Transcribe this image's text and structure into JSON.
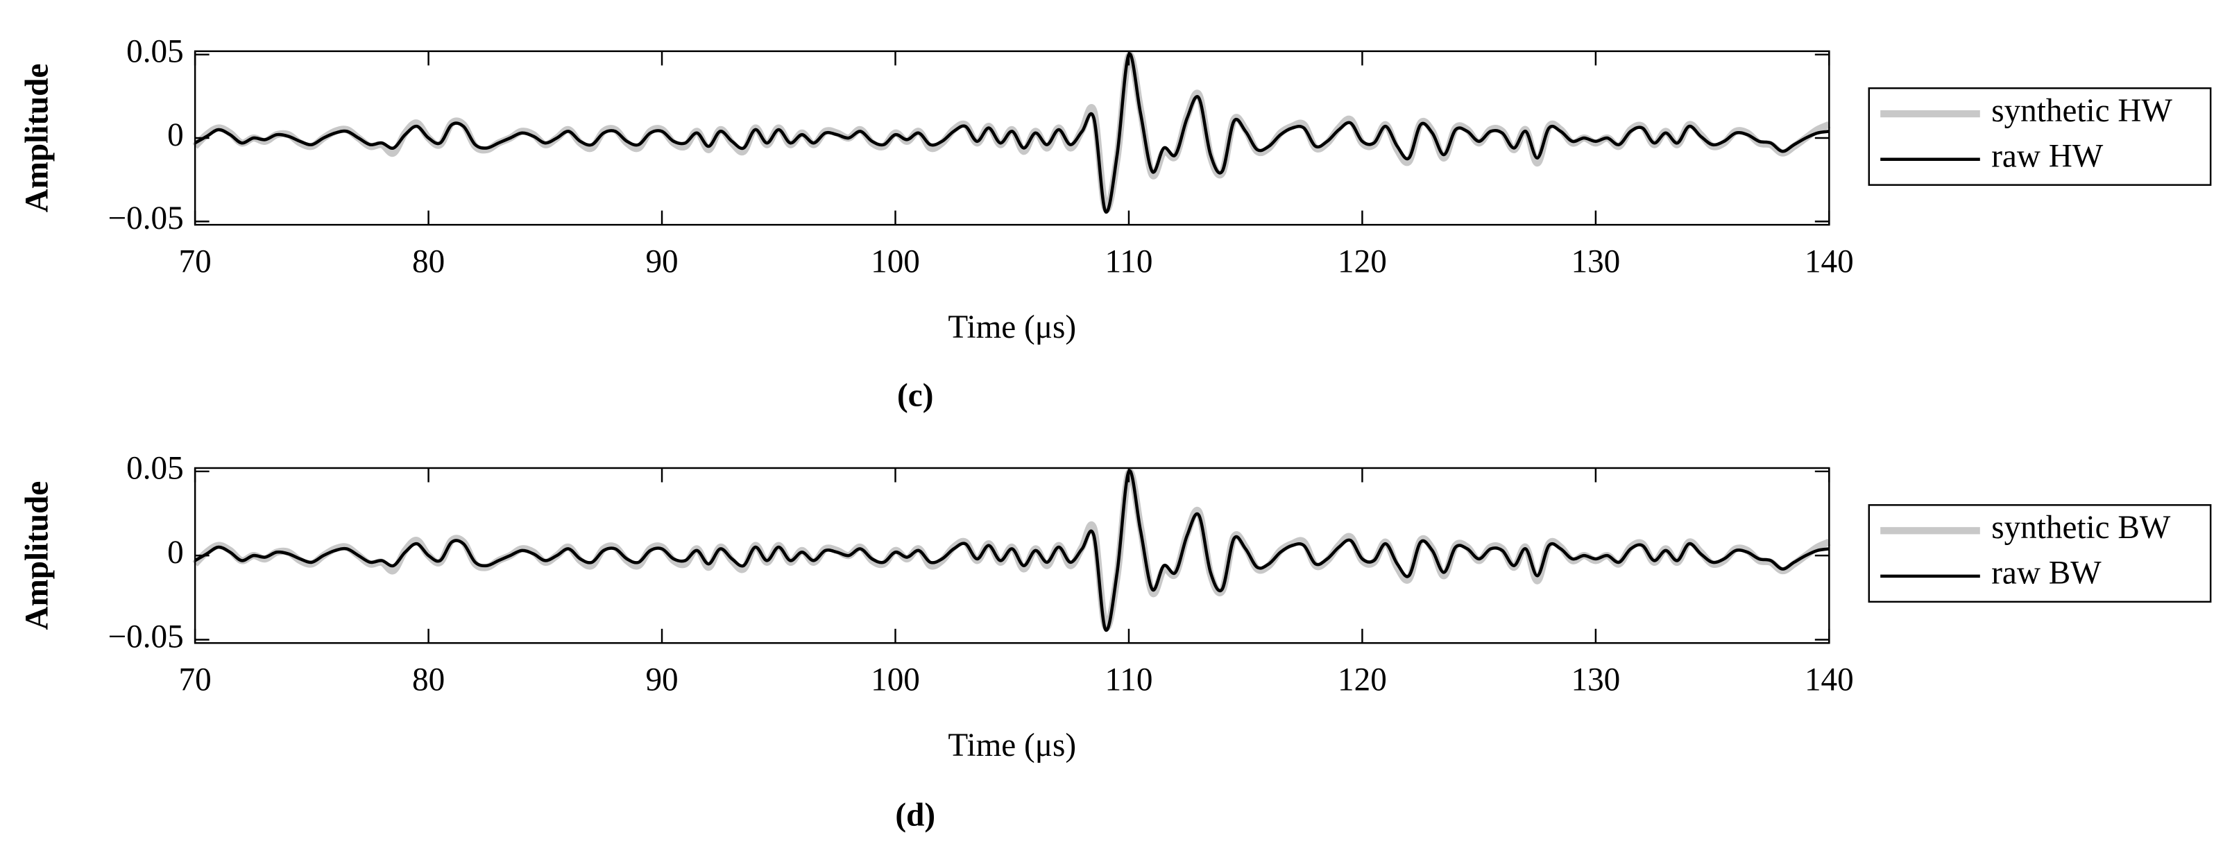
{
  "chart_data": [
    {
      "type": "line",
      "panel_label": "(c)",
      "xlabel": "Time (μs)",
      "ylabel": "Amplitude",
      "xlim": [
        70,
        140
      ],
      "xticks": [
        70,
        80,
        90,
        100,
        110,
        120,
        130,
        140
      ],
      "ylim": [
        -0.052,
        0.052
      ],
      "yticks": [
        {
          "value": -0.05,
          "label": "−0.05"
        },
        0,
        0.05
      ],
      "legend": "outside-right",
      "x": [
        70,
        70.5,
        71,
        71.5,
        72,
        72.5,
        73,
        73.5,
        74,
        74.5,
        75,
        75.5,
        76,
        76.5,
        77,
        77.5,
        78,
        78.5,
        79,
        79.5,
        80,
        80.5,
        81,
        81.5,
        82,
        82.5,
        83,
        83.5,
        84,
        84.5,
        85,
        85.5,
        86,
        86.5,
        87,
        87.5,
        88,
        88.5,
        89,
        89.5,
        90,
        90.5,
        91,
        91.5,
        92,
        92.5,
        93,
        93.5,
        94,
        94.5,
        95,
        95.5,
        96,
        96.5,
        97,
        97.5,
        98,
        98.5,
        99,
        99.5,
        100,
        100.5,
        101,
        101.5,
        102,
        102.5,
        103,
        103.5,
        104,
        104.5,
        105,
        105.5,
        106,
        106.5,
        107,
        107.5,
        108,
        108.5,
        109,
        109.5,
        110,
        110.5,
        111,
        111.5,
        112,
        112.5,
        113,
        113.5,
        114,
        114.5,
        115,
        115.5,
        116,
        116.5,
        117,
        117.5,
        118,
        118.5,
        119,
        119.5,
        120,
        120.5,
        121,
        121.5,
        122,
        122.5,
        123,
        123.5,
        124,
        124.5,
        125,
        125.5,
        126,
        126.5,
        127,
        127.5,
        128,
        128.5,
        129,
        129.5,
        130,
        130.5,
        131,
        131.5,
        132,
        132.5,
        133,
        133.5,
        134,
        134.5,
        135,
        135.5,
        136,
        136.5,
        137,
        137.5,
        138,
        138.5,
        139,
        139.5,
        140
      ],
      "series": [
        {
          "name": "synthetic HW",
          "color": "#c8c8c8",
          "width": 5,
          "values": [
            -0.005,
            0.002,
            0.006,
            0.003,
            -0.003,
            0,
            -0.002,
            0.002,
            0.002,
            -0.003,
            -0.005,
            0,
            0.004,
            0.005,
            0,
            -0.005,
            -0.004,
            -0.009,
            0.003,
            0.009,
            0,
            -0.004,
            0.009,
            0.008,
            -0.005,
            -0.007,
            -0.003,
            0,
            0.004,
            0.002,
            -0.004,
            0,
            0.005,
            -0.003,
            -0.006,
            0.004,
            0.005,
            -0.003,
            -0.006,
            0.004,
            0.005,
            -0.003,
            -0.005,
            0.004,
            -0.007,
            0.005,
            -0.003,
            -0.008,
            0.006,
            -0.004,
            0.006,
            -0.004,
            0.003,
            -0.004,
            0.004,
            0.003,
            0,
            0.005,
            -0.003,
            -0.005,
            0.003,
            -0.002,
            0.004,
            -0.006,
            -0.003,
            0.005,
            0.008,
            -0.003,
            0.007,
            -0.004,
            0.005,
            -0.008,
            0.004,
            -0.006,
            0.006,
            -0.006,
            0.005,
            0.016,
            -0.042,
            -0.012,
            0.049,
            0.017,
            -0.022,
            -0.008,
            -0.011,
            0.013,
            0.026,
            -0.011,
            -0.021,
            0.011,
            0.005,
            -0.008,
            -0.006,
            0.003,
            0.007,
            0.008,
            -0.006,
            -0.003,
            0.006,
            0.011,
            -0.003,
            -0.004,
            0.008,
            -0.007,
            -0.014,
            0.009,
            0.004,
            -0.012,
            0.006,
            0.005,
            -0.003,
            0.005,
            0.004,
            -0.007,
            0.005,
            -0.015,
            0.007,
            0.005,
            -0.003,
            0,
            -0.003,
            0,
            -0.005,
            0.005,
            0.007,
            -0.004,
            0.004,
            -0.004,
            0.008,
            0.002,
            -0.005,
            -0.003,
            0.004,
            0.003,
            -0.003,
            -0.004,
            -0.009,
            -0.005,
            0,
            0.005,
            0.008
          ]
        },
        {
          "name": "raw HW",
          "color": "#000000",
          "width": 2.2,
          "values": [
            -0.003,
            0.001,
            0.005,
            0.002,
            -0.003,
            0,
            -0.001,
            0.002,
            0.001,
            -0.002,
            -0.004,
            0,
            0.003,
            0.004,
            0,
            -0.004,
            -0.003,
            -0.006,
            0.002,
            0.007,
            0,
            -0.003,
            0.008,
            0.007,
            -0.004,
            -0.006,
            -0.003,
            0,
            0.003,
            0.001,
            -0.003,
            0,
            0.004,
            -0.002,
            -0.004,
            0.003,
            0.004,
            -0.002,
            -0.004,
            0.003,
            0.004,
            -0.002,
            -0.003,
            0.003,
            -0.005,
            0.004,
            -0.002,
            -0.006,
            0.005,
            -0.003,
            0.005,
            -0.003,
            0.002,
            -0.003,
            0.003,
            0.002,
            0,
            0.004,
            -0.002,
            -0.004,
            0.002,
            -0.001,
            0.003,
            -0.004,
            -0.002,
            0.004,
            0.007,
            -0.002,
            0.006,
            -0.003,
            0.004,
            -0.006,
            0.003,
            -0.004,
            0.005,
            -0.004,
            0.004,
            0.012,
            -0.044,
            -0.01,
            0.05,
            0.015,
            -0.02,
            -0.006,
            -0.01,
            0.012,
            0.024,
            -0.01,
            -0.02,
            0.01,
            0.004,
            -0.007,
            -0.005,
            0.002,
            0.006,
            0.006,
            -0.005,
            -0.002,
            0.005,
            0.009,
            -0.002,
            -0.003,
            0.007,
            -0.005,
            -0.012,
            0.008,
            0.003,
            -0.01,
            0.005,
            0.004,
            -0.002,
            0.004,
            0.003,
            -0.006,
            0.004,
            -0.012,
            0.006,
            0.004,
            -0.002,
            0,
            -0.002,
            0,
            -0.004,
            0.004,
            0.006,
            -0.003,
            0.003,
            -0.003,
            0.007,
            0.001,
            -0.004,
            -0.002,
            0.003,
            0.002,
            -0.002,
            -0.003,
            -0.008,
            -0.004,
            0,
            0.003,
            0.004
          ]
        }
      ]
    },
    {
      "type": "line",
      "panel_label": "(d)",
      "xlabel": "Time (μs)",
      "ylabel": "Amplitude",
      "xlim": [
        70,
        140
      ],
      "xticks": [
        70,
        80,
        90,
        100,
        110,
        120,
        130,
        140
      ],
      "ylim": [
        -0.052,
        0.052
      ],
      "yticks": [
        {
          "value": -0.05,
          "label": "−0.05"
        },
        0,
        0.05
      ],
      "legend": "outside-right",
      "x": [
        70,
        70.5,
        71,
        71.5,
        72,
        72.5,
        73,
        73.5,
        74,
        74.5,
        75,
        75.5,
        76,
        76.5,
        77,
        77.5,
        78,
        78.5,
        79,
        79.5,
        80,
        80.5,
        81,
        81.5,
        82,
        82.5,
        83,
        83.5,
        84,
        84.5,
        85,
        85.5,
        86,
        86.5,
        87,
        87.5,
        88,
        88.5,
        89,
        89.5,
        90,
        90.5,
        91,
        91.5,
        92,
        92.5,
        93,
        93.5,
        94,
        94.5,
        95,
        95.5,
        96,
        96.5,
        97,
        97.5,
        98,
        98.5,
        99,
        99.5,
        100,
        100.5,
        101,
        101.5,
        102,
        102.5,
        103,
        103.5,
        104,
        104.5,
        105,
        105.5,
        106,
        106.5,
        107,
        107.5,
        108,
        108.5,
        109,
        109.5,
        110,
        110.5,
        111,
        111.5,
        112,
        112.5,
        113,
        113.5,
        114,
        114.5,
        115,
        115.5,
        116,
        116.5,
        117,
        117.5,
        118,
        118.5,
        119,
        119.5,
        120,
        120.5,
        121,
        121.5,
        122,
        122.5,
        123,
        123.5,
        124,
        124.5,
        125,
        125.5,
        126,
        126.5,
        127,
        127.5,
        128,
        128.5,
        129,
        129.5,
        130,
        130.5,
        131,
        131.5,
        132,
        132.5,
        133,
        133.5,
        134,
        134.5,
        135,
        135.5,
        136,
        136.5,
        137,
        137.5,
        138,
        138.5,
        139,
        139.5,
        140
      ],
      "series": [
        {
          "name": "synthetic BW",
          "color": "#c8c8c8",
          "width": 5,
          "values": [
            -0.005,
            0.002,
            0.006,
            0.003,
            -0.003,
            0,
            -0.002,
            0.002,
            0.002,
            -0.003,
            -0.005,
            0,
            0.004,
            0.005,
            0,
            -0.005,
            -0.004,
            -0.009,
            0.003,
            0.009,
            0,
            -0.004,
            0.009,
            0.008,
            -0.005,
            -0.007,
            -0.003,
            0,
            0.004,
            0.002,
            -0.004,
            0,
            0.005,
            -0.003,
            -0.006,
            0.004,
            0.005,
            -0.003,
            -0.006,
            0.004,
            0.005,
            -0.003,
            -0.005,
            0.004,
            -0.007,
            0.005,
            -0.003,
            -0.008,
            0.006,
            -0.004,
            0.006,
            -0.004,
            0.003,
            -0.004,
            0.004,
            0.003,
            0,
            0.005,
            -0.003,
            -0.005,
            0.003,
            -0.002,
            0.004,
            -0.006,
            -0.003,
            0.005,
            0.008,
            -0.003,
            0.007,
            -0.004,
            0.005,
            -0.008,
            0.004,
            -0.006,
            0.006,
            -0.006,
            0.005,
            0.016,
            -0.042,
            -0.012,
            0.049,
            0.017,
            -0.022,
            -0.008,
            -0.011,
            0.013,
            0.026,
            -0.011,
            -0.021,
            0.011,
            0.005,
            -0.008,
            -0.006,
            0.003,
            0.007,
            0.008,
            -0.006,
            -0.003,
            0.006,
            0.011,
            -0.003,
            -0.004,
            0.008,
            -0.007,
            -0.014,
            0.009,
            0.004,
            -0.012,
            0.006,
            0.005,
            -0.003,
            0.005,
            0.004,
            -0.007,
            0.005,
            -0.015,
            0.007,
            0.005,
            -0.003,
            0,
            -0.003,
            0,
            -0.005,
            0.005,
            0.007,
            -0.004,
            0.004,
            -0.004,
            0.008,
            0.002,
            -0.005,
            -0.003,
            0.004,
            0.003,
            -0.003,
            -0.004,
            -0.009,
            -0.005,
            0,
            0.005,
            0.008
          ]
        },
        {
          "name": "raw BW",
          "color": "#000000",
          "width": 2.2,
          "values": [
            -0.003,
            0.001,
            0.005,
            0.002,
            -0.003,
            0,
            -0.001,
            0.002,
            0.001,
            -0.002,
            -0.004,
            0,
            0.003,
            0.004,
            0,
            -0.004,
            -0.003,
            -0.006,
            0.002,
            0.007,
            0,
            -0.003,
            0.008,
            0.007,
            -0.004,
            -0.006,
            -0.003,
            0,
            0.003,
            0.001,
            -0.003,
            0,
            0.004,
            -0.002,
            -0.004,
            0.003,
            0.004,
            -0.002,
            -0.004,
            0.003,
            0.004,
            -0.002,
            -0.003,
            0.003,
            -0.005,
            0.004,
            -0.002,
            -0.006,
            0.005,
            -0.003,
            0.005,
            -0.003,
            0.002,
            -0.003,
            0.003,
            0.002,
            0,
            0.004,
            -0.002,
            -0.004,
            0.002,
            -0.001,
            0.003,
            -0.004,
            -0.002,
            0.004,
            0.007,
            -0.002,
            0.006,
            -0.003,
            0.004,
            -0.006,
            0.003,
            -0.004,
            0.005,
            -0.004,
            0.004,
            0.012,
            -0.044,
            -0.01,
            0.05,
            0.015,
            -0.02,
            -0.006,
            -0.01,
            0.012,
            0.024,
            -0.01,
            -0.02,
            0.01,
            0.004,
            -0.007,
            -0.005,
            0.002,
            0.006,
            0.006,
            -0.005,
            -0.002,
            0.005,
            0.009,
            -0.002,
            -0.003,
            0.007,
            -0.005,
            -0.012,
            0.008,
            0.003,
            -0.01,
            0.005,
            0.004,
            -0.002,
            0.004,
            0.003,
            -0.006,
            0.004,
            -0.012,
            0.006,
            0.004,
            -0.002,
            0,
            -0.002,
            0,
            -0.004,
            0.004,
            0.006,
            -0.003,
            0.003,
            -0.003,
            0.007,
            0.001,
            -0.004,
            -0.002,
            0.003,
            0.002,
            -0.002,
            -0.003,
            -0.008,
            -0.004,
            0,
            0.003,
            0.004
          ]
        }
      ]
    }
  ]
}
